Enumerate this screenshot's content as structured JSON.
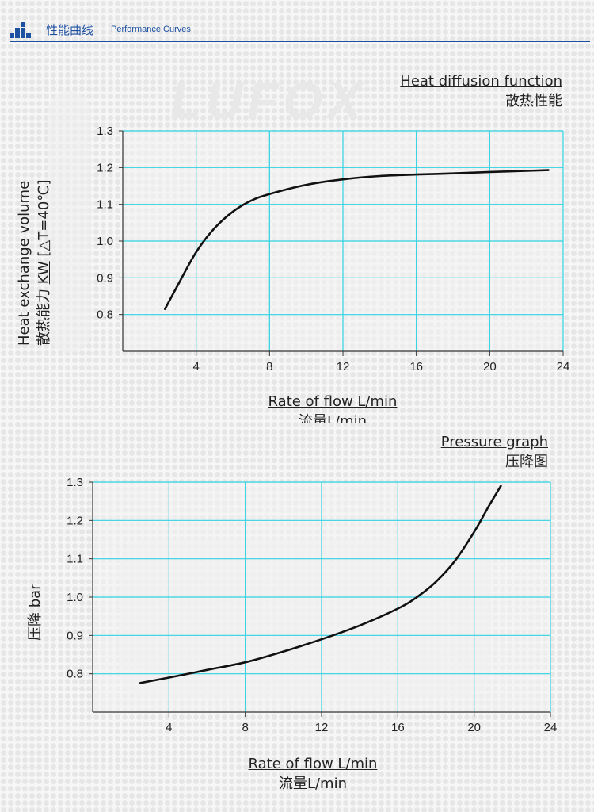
{
  "header": {
    "title_zh": "性能曲线",
    "title_en": "Performance Curves"
  },
  "watermark": "LUFOX",
  "colors": {
    "brand": "#1e50a2",
    "grid": "#2fd2e2",
    "curve": "#111111"
  },
  "chart_data": [
    {
      "type": "line",
      "title": "Heat diffusion function",
      "subtitle": "散热性能",
      "xlabel": "Rate of flow L/min",
      "xlabel_zh": "流量L/min",
      "ylabel_en": "Heat exchange volume",
      "ylabel_zh": "散热能力",
      "ylabel_unit": "KW",
      "ylabel_condition": "[△T=40℃]",
      "xlim": [
        0,
        24
      ],
      "ylim": [
        0.7,
        1.3
      ],
      "xticks": [
        "4",
        "8",
        "12",
        "16",
        "20",
        "24"
      ],
      "yticks": [
        "1.3",
        "1.2",
        "1.1",
        "1.0",
        "0.9",
        "0.8"
      ],
      "grid": true,
      "series": [
        {
          "x": [
            2.3,
            3.0,
            4.0,
            5.0,
            6.0,
            7.0,
            8.0,
            10.0,
            12.0,
            14.0,
            16.0,
            18.0,
            20.0,
            22.0,
            23.2
          ],
          "y": [
            0.815,
            0.88,
            0.97,
            1.035,
            1.08,
            1.11,
            1.128,
            1.153,
            1.168,
            1.177,
            1.181,
            1.184,
            1.188,
            1.191,
            1.193
          ]
        }
      ]
    },
    {
      "type": "line",
      "title": "Pressure graph",
      "subtitle": "压降图",
      "xlabel": "Rate of flow L/min",
      "xlabel_zh": "流量L/min",
      "ylabel_zh": "压降",
      "ylabel_unit": "bar",
      "xlim": [
        0,
        24
      ],
      "ylim": [
        0.7,
        1.3
      ],
      "xticks": [
        "4",
        "8",
        "12",
        "16",
        "20",
        "24"
      ],
      "yticks": [
        "1.3",
        "1.2",
        "1.1",
        "1.0",
        "0.9",
        "0.8"
      ],
      "grid": true,
      "series": [
        {
          "x": [
            2.5,
            4.0,
            6.0,
            8.0,
            10.0,
            12.0,
            14.0,
            16.0,
            17.0,
            18.0,
            19.0,
            20.0,
            20.8,
            21.4
          ],
          "y": [
            0.776,
            0.79,
            0.81,
            0.83,
            0.858,
            0.89,
            0.926,
            0.97,
            1.0,
            1.04,
            1.095,
            1.17,
            1.24,
            1.29
          ]
        }
      ]
    }
  ]
}
